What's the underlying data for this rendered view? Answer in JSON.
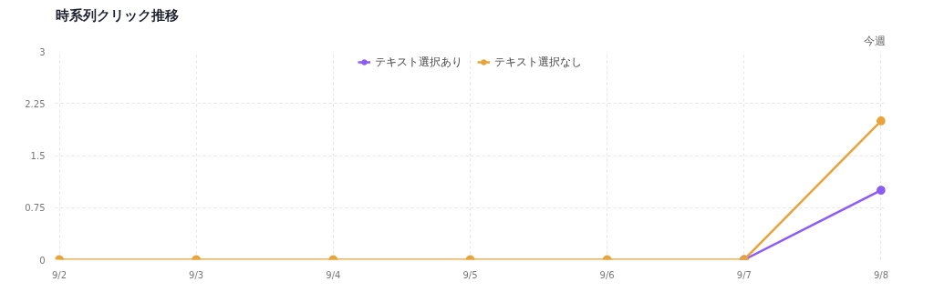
{
  "chart_data": {
    "type": "line",
    "title": "時系列クリック推移",
    "annotations": [
      "今週"
    ],
    "categories": [
      "9/2",
      "9/3",
      "9/4",
      "9/5",
      "9/6",
      "9/7",
      "9/8"
    ],
    "series": [
      {
        "name": "テキスト選択あり",
        "color": "#8b5cf6",
        "values": [
          null,
          null,
          null,
          null,
          null,
          0,
          1
        ]
      },
      {
        "name": "テキスト選択なし",
        "color": "#e8a33a",
        "values": [
          0,
          0,
          0,
          0,
          0,
          0,
          2
        ]
      }
    ],
    "ylim": [
      0,
      3
    ],
    "yticks": [
      0,
      0.75,
      1.5,
      2.25,
      3
    ],
    "grid": true,
    "legend": "top",
    "marker": "circle",
    "line_style": "solid"
  }
}
